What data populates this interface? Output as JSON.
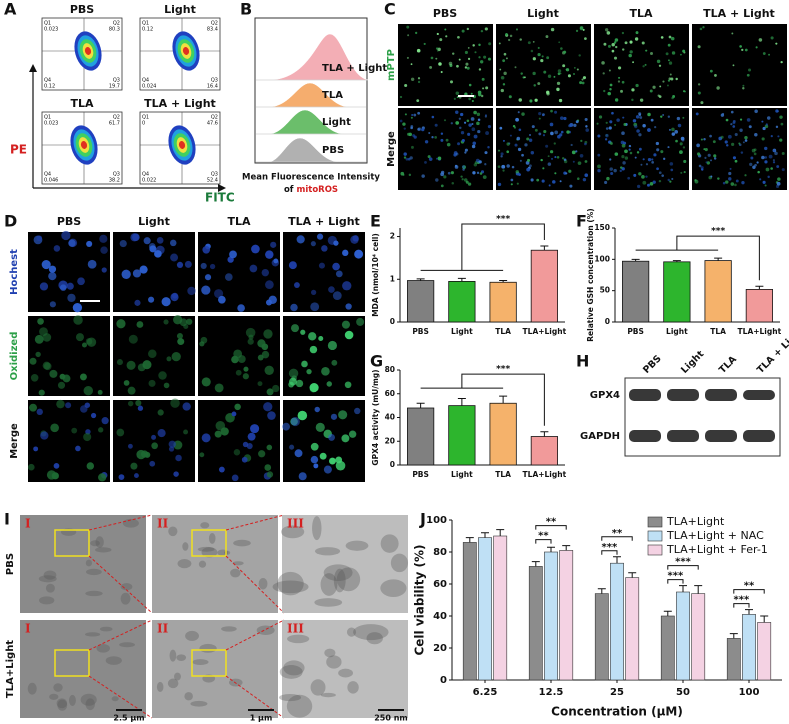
{
  "panel_labels": [
    "A",
    "B",
    "C",
    "D",
    "E",
    "F",
    "G",
    "H",
    "I",
    "J"
  ],
  "flow": {
    "y_label": "PE",
    "x_label": "FITC",
    "plots": [
      {
        "title": "PBS",
        "quadrants": [
          [
            "Q1",
            "0.023"
          ],
          [
            "Q2",
            "80.3"
          ],
          [
            "Q4",
            "0.12"
          ],
          [
            "Q3",
            "19.7"
          ]
        ]
      },
      {
        "title": "Light",
        "quadrants": [
          [
            "Q1",
            "0.12"
          ],
          [
            "Q2",
            "83.4"
          ],
          [
            "Q4",
            "0.024"
          ],
          [
            "Q3",
            "16.4"
          ]
        ]
      },
      {
        "title": "TLA",
        "quadrants": [
          [
            "Q1",
            "0.023"
          ],
          [
            "Q2",
            "61.7"
          ],
          [
            "Q4",
            "0.046"
          ],
          [
            "Q3",
            "38.2"
          ]
        ]
      },
      {
        "title": "TLA + Light",
        "quadrants": [
          [
            "Q1",
            "0"
          ],
          [
            "Q2",
            "47.6"
          ],
          [
            "Q4",
            "0.022"
          ],
          [
            "Q3",
            "52.4"
          ]
        ]
      }
    ]
  },
  "histogram": {
    "labels": [
      "TLA + Light",
      "TLA",
      "Light",
      "PBS"
    ],
    "colors": [
      "#f2a6ad",
      "#f5a55f",
      "#5cb85c",
      "#a9a9a9"
    ],
    "xlabel_line1": "Mean Fluorescence Intensity",
    "xlabel_of": "of",
    "xlabel_probe": "mitoROS"
  },
  "confocal_c": {
    "columns": [
      "PBS",
      "Light",
      "TLA",
      "TLA + Light"
    ],
    "rows": [
      "mPTP",
      "Merge"
    ]
  },
  "confocal_d": {
    "columns": [
      "PBS",
      "Light",
      "TLA",
      "TLA + Light"
    ],
    "rows": [
      "Hochest",
      "Oxidized",
      "Merge"
    ]
  },
  "blot": {
    "lanes": [
      "PBS",
      "Light",
      "TLA",
      "TLA + Light"
    ],
    "bands": [
      "GPX4",
      "GAPDH"
    ]
  },
  "tem": {
    "rows": [
      "PBS",
      "TLA+Light"
    ],
    "numerals": [
      "I",
      "II",
      "III"
    ],
    "scale_bars": [
      "2.5 μm",
      "1 μm",
      "250 nm"
    ]
  },
  "chart_data": [
    {
      "type": "bar",
      "ylabel": "MDA (nmol/10⁴ cell)",
      "categories": [
        "PBS",
        "Light",
        "TLA",
        "TLA+Light"
      ],
      "values": [
        0.97,
        0.95,
        0.93,
        1.68
      ],
      "errors": [
        0.04,
        0.07,
        0.04,
        0.1
      ],
      "colors": [
        "#808080",
        "#2db52d",
        "#f5b26b",
        "#f19a9a"
      ],
      "ylim": [
        0,
        2.2
      ],
      "yticks": [
        0,
        1,
        2
      ],
      "significance": "***"
    },
    {
      "type": "bar",
      "ylabel": "Relative GSH concentration (%)",
      "categories": [
        "PBS",
        "Light",
        "TLA",
        "TLA+Light"
      ],
      "values": [
        97,
        96,
        98,
        52
      ],
      "errors": [
        3,
        2,
        4,
        5
      ],
      "colors": [
        "#808080",
        "#2db52d",
        "#f5b26b",
        "#f19a9a"
      ],
      "ylim": [
        0,
        150
      ],
      "yticks": [
        0,
        50,
        100,
        150
      ],
      "significance": "***"
    },
    {
      "type": "bar",
      "ylabel": "GPX4 activity (mU/mg)",
      "categories": [
        "PBS",
        "Light",
        "TLA",
        "TLA+Light"
      ],
      "values": [
        48,
        50,
        52,
        24
      ],
      "errors": [
        4,
        6,
        6,
        4
      ],
      "colors": [
        "#808080",
        "#2db52d",
        "#f5b26b",
        "#f19a9a"
      ],
      "ylim": [
        0,
        80
      ],
      "yticks": [
        0,
        20,
        40,
        60,
        80
      ],
      "significance": "***"
    },
    {
      "type": "grouped_bar",
      "ylabel": "Cell viability (%)",
      "xlabel": "Concentration (μM)",
      "categories": [
        "6.25",
        "12.5",
        "25",
        "50",
        "100"
      ],
      "series": [
        {
          "name": "TLA+Light",
          "color": "#8c8c8c",
          "values": [
            86,
            71,
            54,
            40,
            26
          ],
          "errors": [
            3,
            3,
            3,
            3,
            3
          ]
        },
        {
          "name": "TLA+Light + NAC",
          "color": "#bfe0f5",
          "values": [
            89,
            80,
            73,
            55,
            41
          ],
          "errors": [
            3,
            3,
            4,
            4,
            3
          ]
        },
        {
          "name": "TLA+Light + Fer-1",
          "color": "#f4d2e3",
          "values": [
            90,
            81,
            64,
            54,
            36
          ],
          "errors": [
            4,
            3,
            3,
            5,
            4
          ]
        }
      ],
      "ylim": [
        0,
        100
      ],
      "yticks": [
        0,
        20,
        40,
        60,
        80,
        100
      ],
      "annotations": [
        {
          "label": "**",
          "category": 1,
          "series": [
            0,
            1
          ]
        },
        {
          "label": "**",
          "category": 1,
          "series": [
            0,
            2
          ]
        },
        {
          "label": "***",
          "category": 2,
          "series": [
            0,
            1
          ]
        },
        {
          "label": "**",
          "category": 2,
          "series": [
            0,
            2
          ]
        },
        {
          "label": "***",
          "category": 3,
          "series": [
            0,
            1
          ]
        },
        {
          "label": "***",
          "category": 3,
          "series": [
            0,
            2
          ]
        },
        {
          "label": "***",
          "category": 4,
          "series": [
            0,
            1
          ]
        },
        {
          "label": "**",
          "category": 4,
          "series": [
            0,
            2
          ]
        }
      ]
    }
  ]
}
